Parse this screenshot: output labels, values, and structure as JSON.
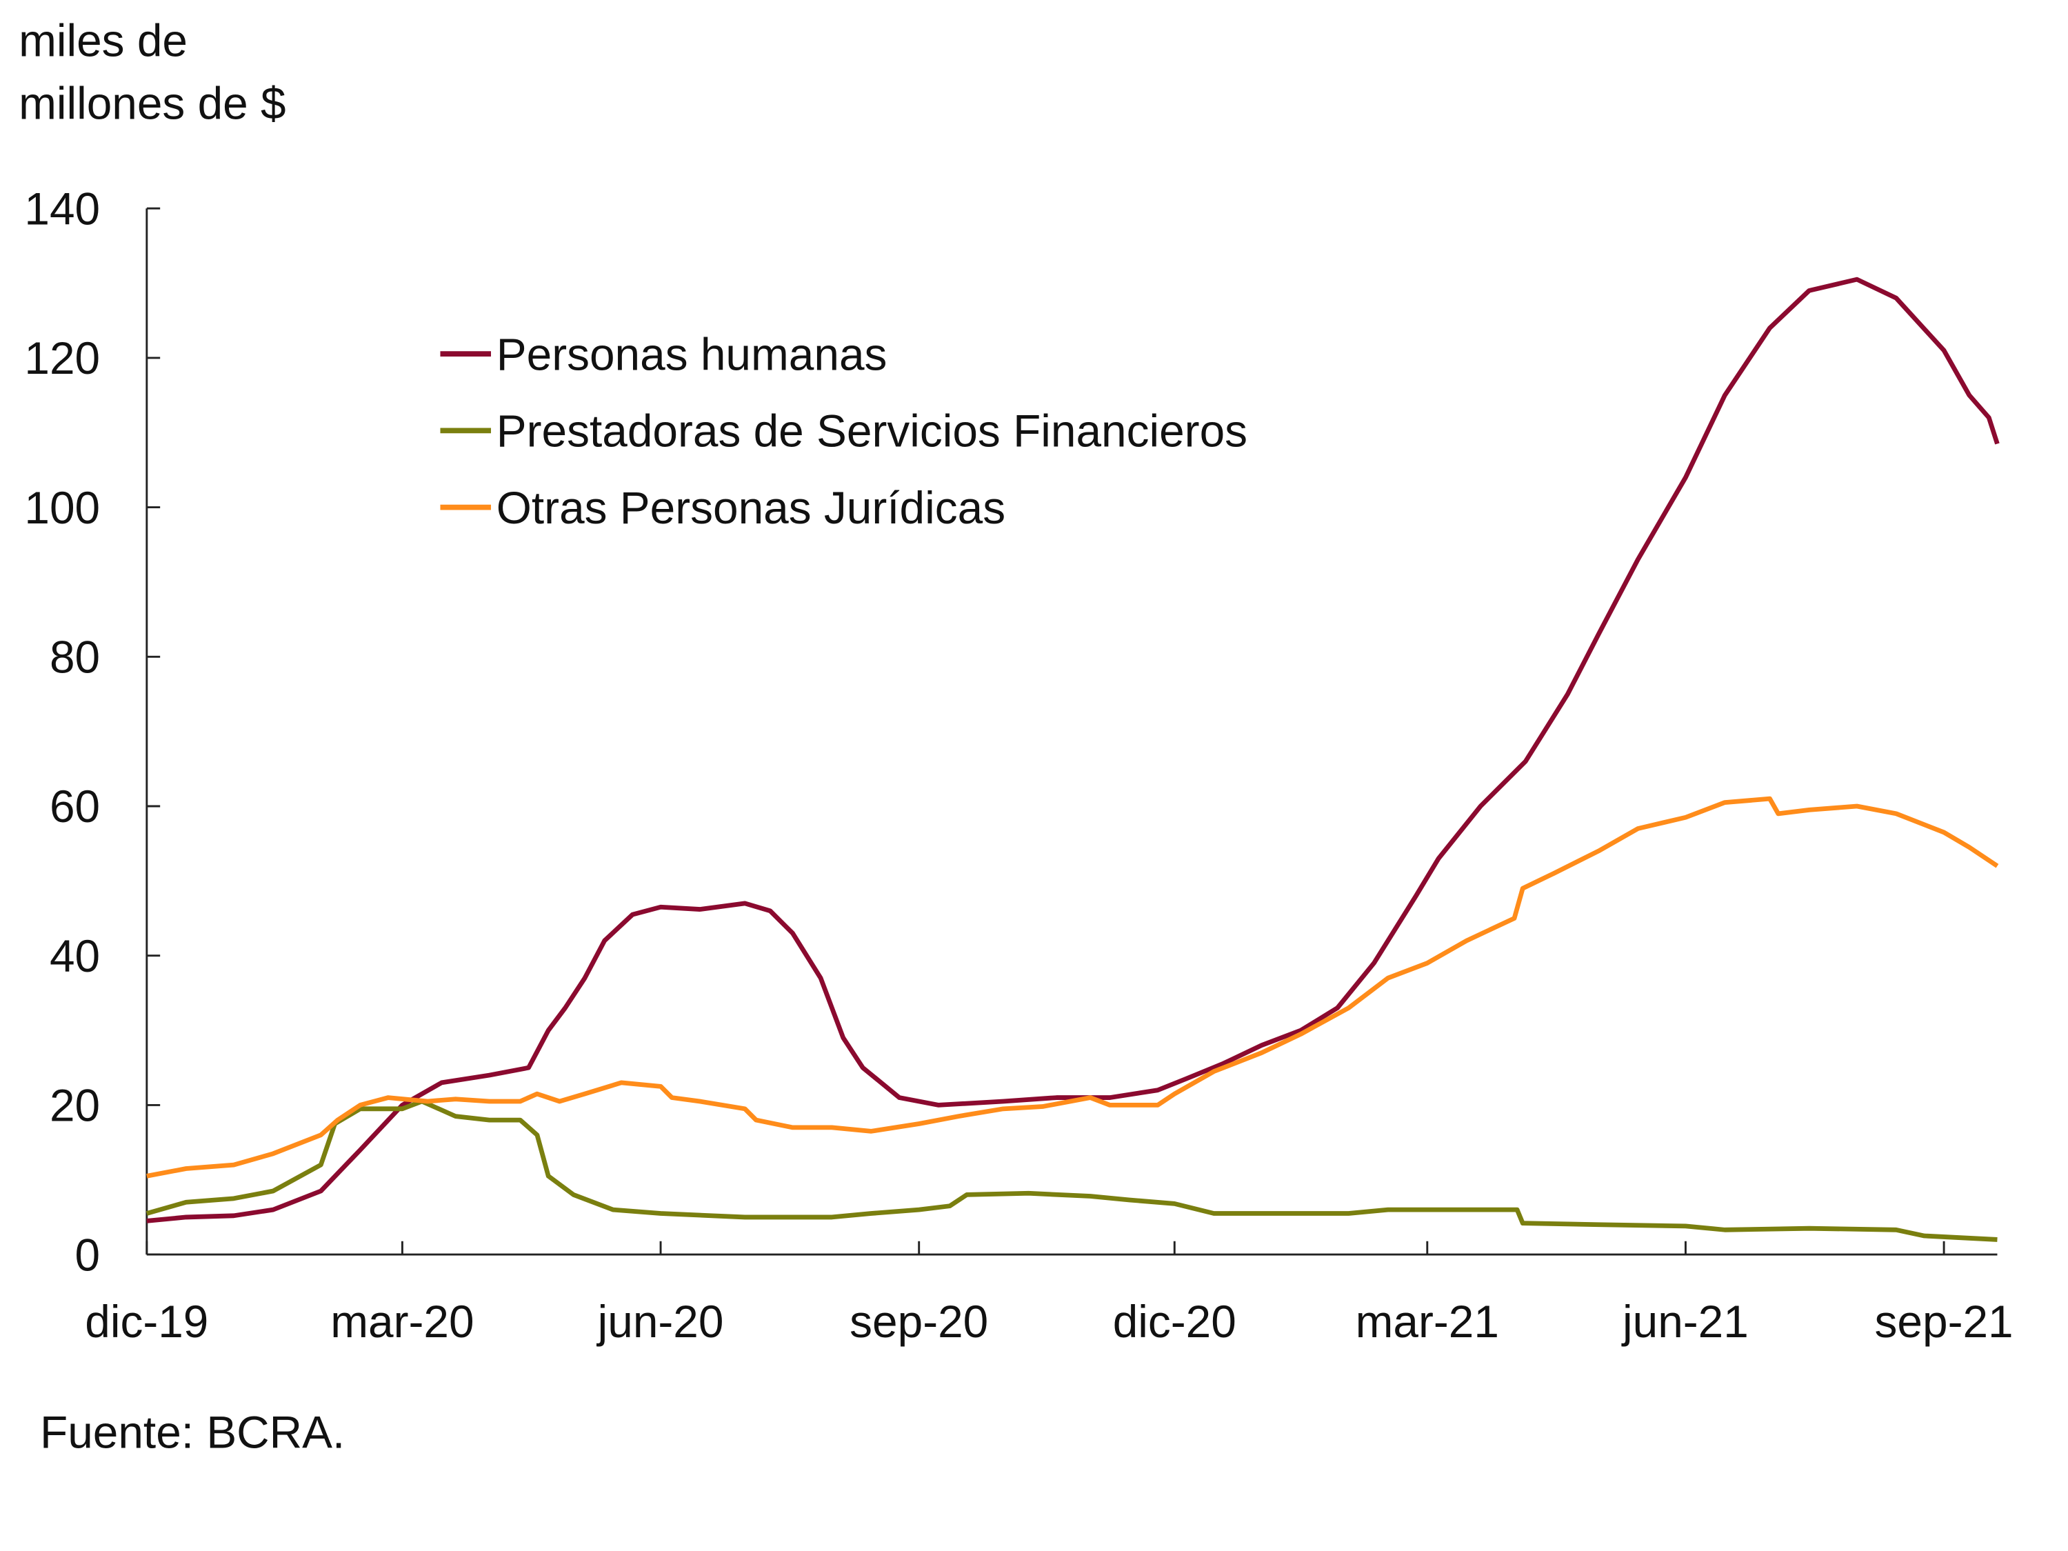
{
  "chart_data": {
    "type": "line",
    "ylabel_lines": [
      "miles de",
      "millones de $"
    ],
    "source": "Fuente: BCRA.",
    "ylim": [
      0,
      140
    ],
    "yticks": [
      0,
      20,
      40,
      60,
      80,
      100,
      120,
      140
    ],
    "xlim": [
      "2019-12-01",
      "2021-09-20"
    ],
    "xticks": [
      {
        "date": "2019-12-01",
        "label": "dic-19"
      },
      {
        "date": "2020-03-01",
        "label": "mar-20"
      },
      {
        "date": "2020-06-01",
        "label": "jun-20"
      },
      {
        "date": "2020-09-01",
        "label": "sep-20"
      },
      {
        "date": "2020-12-01",
        "label": "dic-20"
      },
      {
        "date": "2021-03-01",
        "label": "mar-21"
      },
      {
        "date": "2021-06-01",
        "label": "jun-21"
      },
      {
        "date": "2021-09-01",
        "label": "sep-21"
      }
    ],
    "grid": false,
    "legend_position": "top-left",
    "series": [
      {
        "name": "Personas humanas",
        "color": "#8b0a2f",
        "points": [
          [
            "2019-12-01",
            4.5
          ],
          [
            "2019-12-15",
            5
          ],
          [
            "2020-01-01",
            5.2
          ],
          [
            "2020-01-15",
            6
          ],
          [
            "2020-02-01",
            8.5
          ],
          [
            "2020-02-15",
            14
          ],
          [
            "2020-03-01",
            20
          ],
          [
            "2020-03-15",
            23
          ],
          [
            "2020-04-01",
            24
          ],
          [
            "2020-04-15",
            25
          ],
          [
            "2020-04-22",
            30
          ],
          [
            "2020-04-28",
            33
          ],
          [
            "2020-05-05",
            37
          ],
          [
            "2020-05-12",
            42
          ],
          [
            "2020-05-22",
            45.5
          ],
          [
            "2020-06-01",
            46.5
          ],
          [
            "2020-06-15",
            46.2
          ],
          [
            "2020-07-01",
            47
          ],
          [
            "2020-07-10",
            46
          ],
          [
            "2020-07-18",
            43
          ],
          [
            "2020-07-28",
            37
          ],
          [
            "2020-08-05",
            29
          ],
          [
            "2020-08-12",
            25
          ],
          [
            "2020-08-25",
            21
          ],
          [
            "2020-09-08",
            20
          ],
          [
            "2020-10-01",
            20.5
          ],
          [
            "2020-10-20",
            21
          ],
          [
            "2020-11-08",
            21
          ],
          [
            "2020-11-25",
            22
          ],
          [
            "2020-12-05",
            23.5
          ],
          [
            "2020-12-18",
            25.5
          ],
          [
            "2021-01-01",
            28
          ],
          [
            "2021-01-15",
            30
          ],
          [
            "2021-01-28",
            33
          ],
          [
            "2021-02-10",
            39
          ],
          [
            "2021-02-25",
            48
          ],
          [
            "2021-03-05",
            53
          ],
          [
            "2021-03-20",
            60
          ],
          [
            "2021-04-05",
            66
          ],
          [
            "2021-04-20",
            75
          ],
          [
            "2021-05-01",
            83
          ],
          [
            "2021-05-15",
            93
          ],
          [
            "2021-06-01",
            104
          ],
          [
            "2021-06-15",
            115
          ],
          [
            "2021-07-01",
            124
          ],
          [
            "2021-07-15",
            129
          ],
          [
            "2021-08-01",
            130.5
          ],
          [
            "2021-08-15",
            128
          ],
          [
            "2021-09-01",
            121
          ],
          [
            "2021-09-10",
            115
          ],
          [
            "2021-09-17",
            112
          ],
          [
            "2021-09-20",
            108.5
          ]
        ]
      },
      {
        "name": "Prestadoras de Servicios Financieros",
        "color": "#7a7f0f",
        "points": [
          [
            "2019-12-01",
            5.5
          ],
          [
            "2019-12-15",
            7
          ],
          [
            "2020-01-01",
            7.5
          ],
          [
            "2020-01-15",
            8.5
          ],
          [
            "2020-02-01",
            12
          ],
          [
            "2020-02-06",
            17.5
          ],
          [
            "2020-02-15",
            19.5
          ],
          [
            "2020-03-01",
            19.5
          ],
          [
            "2020-03-08",
            20.5
          ],
          [
            "2020-03-20",
            18.5
          ],
          [
            "2020-04-01",
            18
          ],
          [
            "2020-04-12",
            18
          ],
          [
            "2020-04-18",
            16
          ],
          [
            "2020-04-22",
            10.5
          ],
          [
            "2020-05-01",
            8
          ],
          [
            "2020-05-15",
            6
          ],
          [
            "2020-06-01",
            5.5
          ],
          [
            "2020-07-01",
            5
          ],
          [
            "2020-08-01",
            5
          ],
          [
            "2020-08-15",
            5.5
          ],
          [
            "2020-09-01",
            6
          ],
          [
            "2020-09-12",
            6.5
          ],
          [
            "2020-09-18",
            8
          ],
          [
            "2020-10-10",
            8.2
          ],
          [
            "2020-11-01",
            7.8
          ],
          [
            "2020-11-15",
            7.3
          ],
          [
            "2020-12-01",
            6.8
          ],
          [
            "2020-12-15",
            5.5
          ],
          [
            "2021-01-01",
            5.5
          ],
          [
            "2021-02-01",
            5.5
          ],
          [
            "2021-02-15",
            6
          ],
          [
            "2021-03-15",
            6
          ],
          [
            "2021-04-02",
            6
          ],
          [
            "2021-04-04",
            4.2
          ],
          [
            "2021-05-01",
            4
          ],
          [
            "2021-06-01",
            3.8
          ],
          [
            "2021-06-15",
            3.3
          ],
          [
            "2021-07-15",
            3.5
          ],
          [
            "2021-08-15",
            3.3
          ],
          [
            "2021-08-25",
            2.5
          ],
          [
            "2021-09-20",
            2
          ]
        ]
      },
      {
        "name": "Otras Personas Jurídicas",
        "color": "#ff8c1a",
        "points": [
          [
            "2019-12-01",
            10.5
          ],
          [
            "2019-12-15",
            11.5
          ],
          [
            "2020-01-01",
            12
          ],
          [
            "2020-01-15",
            13.5
          ],
          [
            "2020-02-01",
            16
          ],
          [
            "2020-02-07",
            18
          ],
          [
            "2020-02-15",
            20
          ],
          [
            "2020-02-25",
            21
          ],
          [
            "2020-03-10",
            20.5
          ],
          [
            "2020-03-20",
            20.8
          ],
          [
            "2020-04-01",
            20.5
          ],
          [
            "2020-04-12",
            20.5
          ],
          [
            "2020-04-18",
            21.5
          ],
          [
            "2020-04-26",
            20.5
          ],
          [
            "2020-05-05",
            21.5
          ],
          [
            "2020-05-18",
            23
          ],
          [
            "2020-06-01",
            22.5
          ],
          [
            "2020-06-05",
            21
          ],
          [
            "2020-06-15",
            20.5
          ],
          [
            "2020-07-01",
            19.5
          ],
          [
            "2020-07-05",
            18
          ],
          [
            "2020-07-18",
            17
          ],
          [
            "2020-08-01",
            17
          ],
          [
            "2020-08-15",
            16.5
          ],
          [
            "2020-09-01",
            17.5
          ],
          [
            "2020-09-15",
            18.5
          ],
          [
            "2020-10-01",
            19.5
          ],
          [
            "2020-10-15",
            19.8
          ],
          [
            "2020-11-01",
            21
          ],
          [
            "2020-11-08",
            20
          ],
          [
            "2020-11-25",
            20
          ],
          [
            "2020-12-01",
            21.5
          ],
          [
            "2020-12-15",
            24.5
          ],
          [
            "2021-01-01",
            27
          ],
          [
            "2021-01-15",
            29.5
          ],
          [
            "2021-02-01",
            33
          ],
          [
            "2021-02-15",
            37
          ],
          [
            "2021-03-01",
            39
          ],
          [
            "2021-03-15",
            42
          ],
          [
            "2021-04-01",
            45
          ],
          [
            "2021-04-04",
            49
          ],
          [
            "2021-04-15",
            51
          ],
          [
            "2021-05-01",
            54
          ],
          [
            "2021-05-15",
            57
          ],
          [
            "2021-06-01",
            58.5
          ],
          [
            "2021-06-15",
            60.5
          ],
          [
            "2021-07-01",
            61
          ],
          [
            "2021-07-04",
            59
          ],
          [
            "2021-07-15",
            59.5
          ],
          [
            "2021-08-01",
            60
          ],
          [
            "2021-08-15",
            59
          ],
          [
            "2021-09-01",
            56.5
          ],
          [
            "2021-09-10",
            54.5
          ],
          [
            "2021-09-20",
            52
          ]
        ]
      }
    ]
  }
}
